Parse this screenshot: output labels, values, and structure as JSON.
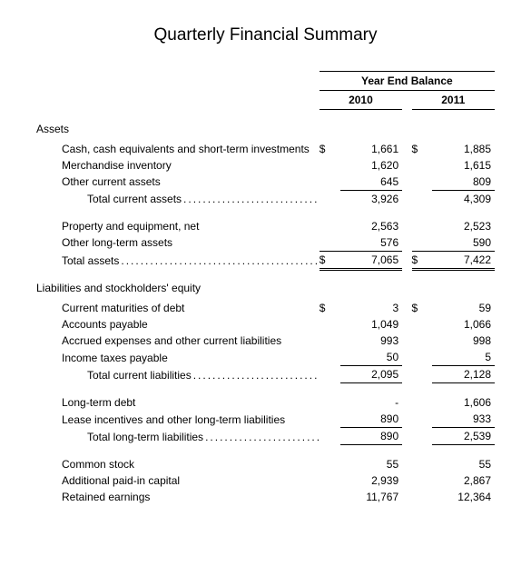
{
  "title": "Quarterly Financial Summary",
  "header": {
    "span_label": "Year End Balance",
    "year1": "2010",
    "year2": "2011"
  },
  "sections": {
    "assets": {
      "heading": "Assets",
      "rows": {
        "cash": {
          "label": "Cash, cash equivalents and short-term investments",
          "sym1": "$",
          "v1": "1,661",
          "sym2": "$",
          "v2": "1,885"
        },
        "merch": {
          "label": "Merchandise inventory",
          "v1": "1,620",
          "v2": "1,615"
        },
        "other_ca": {
          "label": "Other current assets",
          "v1": "645",
          "v2": "809"
        },
        "total_ca": {
          "label": "Total current assets",
          "v1": "3,926",
          "v2": "4,309"
        },
        "ppe": {
          "label": "Property and equipment, net",
          "v1": "2,563",
          "v2": "2,523"
        },
        "other_lt": {
          "label": "Other long-term assets",
          "v1": "576",
          "v2": "590"
        },
        "total_assets": {
          "label": "Total assets",
          "sym1": "$",
          "v1": "7,065",
          "sym2": "$",
          "v2": "7,422"
        }
      }
    },
    "liab": {
      "heading": "Liabilities and stockholders' equity",
      "rows": {
        "cur_mat": {
          "label": "Current maturities of debt",
          "sym1": "$",
          "v1": "3",
          "sym2": "$",
          "v2": "59"
        },
        "ap": {
          "label": "Accounts payable",
          "v1": "1,049",
          "v2": "1,066"
        },
        "accrued": {
          "label": "Accrued expenses and other current liabilities",
          "v1": "993",
          "v2": "998"
        },
        "tax": {
          "label": "Income taxes payable",
          "v1": "50",
          "v2": "5"
        },
        "total_cl": {
          "label": "Total current liabilities",
          "v1": "2,095",
          "v2": "2,128"
        },
        "lt_debt": {
          "label": "Long-term debt",
          "v1": "-",
          "v2": "1,606"
        },
        "lease": {
          "label": "Lease incentives and other long-term liabilities",
          "v1": "890",
          "v2": "933"
        },
        "total_ltl": {
          "label": "Total long-term liabilities",
          "v1": "890",
          "v2": "2,539"
        },
        "common": {
          "label": "Common stock",
          "v1": "55",
          "v2": "55"
        },
        "apic": {
          "label": "Additional paid-in capital",
          "v1": "2,939",
          "v2": "2,867"
        },
        "retained": {
          "label": "Retained earnings",
          "v1": "11,767",
          "v2": "12,364"
        }
      }
    }
  },
  "style": {
    "background_color": "#ffffff",
    "text_color": "#000000",
    "title_fontsize": 19,
    "body_fontsize": 12,
    "rule_color": "#000000"
  }
}
